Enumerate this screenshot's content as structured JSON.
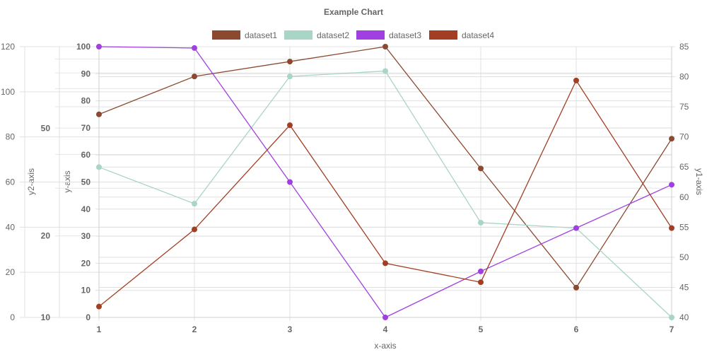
{
  "chart_data": {
    "type": "line",
    "title": "Example Chart",
    "xlabel": "x-axis",
    "x": [
      1,
      2,
      3,
      4,
      5,
      6,
      7
    ],
    "axes": {
      "y": {
        "title": "y-axis",
        "min": 0,
        "max": 100,
        "ticks": [
          0,
          10,
          20,
          30,
          40,
          50,
          60,
          70,
          80,
          90,
          100
        ],
        "position": "left",
        "bold_ticks": true
      },
      "y1": {
        "title": "y1-axis",
        "min": 40,
        "max": 85,
        "ticks": [
          40,
          45,
          50,
          55,
          60,
          65,
          70,
          75,
          80,
          85
        ],
        "position": "right"
      },
      "y2": {
        "title": "y2-axis",
        "min": 0,
        "max": 120,
        "ticks": [
          0,
          20,
          40,
          60,
          80,
          100,
          120
        ],
        "position": "left"
      },
      "y3": {
        "type": "log",
        "min": 10,
        "max": 100,
        "ticks": [
          10,
          20,
          50
        ],
        "position": "left",
        "bold_ticks": true
      }
    },
    "legend_position": "top",
    "grid": true,
    "series": [
      {
        "name": "dataset1",
        "color": "#8B4A30",
        "axis": "y",
        "values": [
          75,
          89,
          94.5,
          100,
          55,
          11,
          66
        ]
      },
      {
        "name": "dataset2",
        "color": "#A8D5C5",
        "axis": "y",
        "values": [
          55.5,
          42,
          89,
          91,
          35,
          33,
          0
        ]
      },
      {
        "name": "dataset3",
        "color": "#A040E0",
        "axis": "y",
        "values": [
          100,
          99.5,
          50,
          0,
          17,
          33,
          49
        ]
      },
      {
        "name": "dataset4",
        "color": "#A23E24",
        "axis": "y",
        "values": [
          4,
          32.5,
          71,
          20,
          13,
          87.5,
          33
        ]
      }
    ]
  }
}
